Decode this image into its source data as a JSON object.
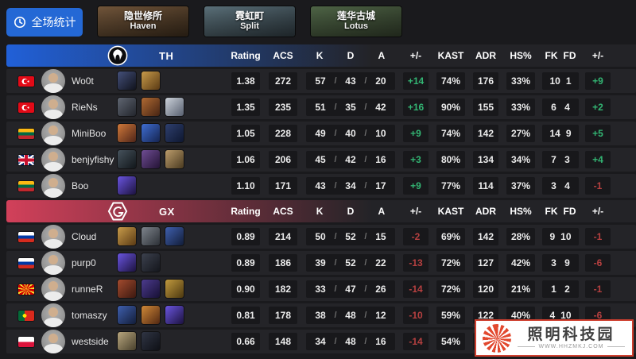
{
  "colors": {
    "positive": "#33b573",
    "negative": "#b64040",
    "button_blue": "#2468d5"
  },
  "top_bar": {
    "overall_button": {
      "label": "全场统计",
      "icon": "clock-icon"
    },
    "maps": [
      {
        "name_cn": "隐世修所",
        "name_en": "Haven",
        "c1": "#8a6847",
        "c2": "#40301f"
      },
      {
        "name_cn": "霓虹町",
        "name_en": "Split",
        "c1": "#6e8893",
        "c2": "#333f46"
      },
      {
        "name_cn": "莲华古城",
        "name_en": "Lotus",
        "c1": "#5f7a55",
        "c2": "#37432f"
      }
    ]
  },
  "columns": [
    "Rating",
    "ACS",
    "K",
    "D",
    "A",
    "+/-",
    "KAST",
    "ADR",
    "HS%",
    "FK",
    "FD",
    "+/-"
  ],
  "kda_separator": "/",
  "teams": [
    {
      "tag": "TH",
      "accent": "#2160d8",
      "players": [
        {
          "name": "Wo0t",
          "country": "tr",
          "rating": "1.38",
          "acs": "272",
          "k": "57",
          "d": "43",
          "a": "20",
          "diff": "+14",
          "kast": "74%",
          "adr": "176",
          "hs": "33%",
          "fk": "10",
          "fd": "1",
          "diff2": "+9",
          "agents": [
            [
              "#44507a",
              "#10121c"
            ],
            [
              "#c89b4a",
              "#5a3a14"
            ]
          ]
        },
        {
          "name": "RieNs",
          "country": "tr",
          "rating": "1.35",
          "acs": "235",
          "k": "51",
          "d": "35",
          "a": "42",
          "diff": "+16",
          "kast": "90%",
          "adr": "155",
          "hs": "33%",
          "fk": "6",
          "fd": "4",
          "diff2": "+2",
          "agents": [
            [
              "#606672",
              "#22252c"
            ],
            [
              "#b06a33",
              "#462413"
            ],
            [
              "#ccd2da",
              "#586070"
            ]
          ]
        },
        {
          "name": "MiniBoo",
          "country": "lt",
          "rating": "1.05",
          "acs": "228",
          "k": "49",
          "d": "40",
          "a": "10",
          "diff": "+9",
          "kast": "74%",
          "adr": "142",
          "hs": "27%",
          "fk": "14",
          "fd": "9",
          "diff2": "+5",
          "agents": [
            [
              "#d0793a",
              "#4e2418"
            ],
            [
              "#3f6ed2",
              "#152450"
            ],
            [
              "#2e3f6e",
              "#0e1730"
            ]
          ]
        },
        {
          "name": "benjyfishy",
          "country": "gb",
          "rating": "1.06",
          "acs": "206",
          "k": "45",
          "d": "42",
          "a": "16",
          "diff": "+3",
          "kast": "80%",
          "adr": "134",
          "hs": "34%",
          "fk": "7",
          "fd": "3",
          "diff2": "+4",
          "agents": [
            [
              "#46525c",
              "#11161a"
            ],
            [
              "#6f4d93",
              "#241336"
            ],
            [
              "#bb9c6b",
              "#4a3a20"
            ]
          ]
        },
        {
          "name": "Boo",
          "country": "lt",
          "rating": "1.10",
          "acs": "171",
          "k": "43",
          "d": "34",
          "a": "17",
          "diff": "+9",
          "kast": "77%",
          "adr": "114",
          "hs": "37%",
          "fk": "3",
          "fd": "4",
          "diff2": "-1",
          "agents": [
            [
              "#6a55e0",
              "#1c123e"
            ]
          ]
        }
      ]
    },
    {
      "tag": "GX",
      "accent": "#d2405a",
      "players": [
        {
          "name": "Cloud",
          "country": "ru",
          "rating": "0.89",
          "acs": "214",
          "k": "50",
          "d": "52",
          "a": "15",
          "diff": "-2",
          "kast": "69%",
          "adr": "142",
          "hs": "28%",
          "fk": "9",
          "fd": "10",
          "diff2": "-1",
          "agents": [
            [
              "#c89b4a",
              "#5a3a14"
            ],
            [
              "#7e848c",
              "#2c3036"
            ],
            [
              "#3f5fae",
              "#121d38"
            ]
          ]
        },
        {
          "name": "purp0",
          "country": "ru",
          "rating": "0.89",
          "acs": "186",
          "k": "39",
          "d": "52",
          "a": "22",
          "diff": "-13",
          "kast": "72%",
          "adr": "127",
          "hs": "42%",
          "fk": "3",
          "fd": "9",
          "diff2": "-6",
          "agents": [
            [
              "#6a55e0",
              "#1c123e"
            ],
            [
              "#3c414e",
              "#14161c"
            ]
          ]
        },
        {
          "name": "runneR",
          "country": "mk",
          "rating": "0.90",
          "acs": "182",
          "k": "33",
          "d": "47",
          "a": "26",
          "diff": "-14",
          "kast": "72%",
          "adr": "120",
          "hs": "21%",
          "fk": "1",
          "fd": "2",
          "diff2": "-1",
          "agents": [
            [
              "#a34b2e",
              "#3c1810"
            ],
            [
              "#4c3b8e",
              "#171034"
            ],
            [
              "#c19a3e",
              "#4c3810"
            ]
          ]
        },
        {
          "name": "tomaszy",
          "country": "pt",
          "rating": "0.81",
          "acs": "178",
          "k": "38",
          "d": "48",
          "a": "12",
          "diff": "-10",
          "kast": "59%",
          "adr": "122",
          "hs": "40%",
          "fk": "4",
          "fd": "10",
          "diff2": "-6",
          "agents": [
            [
              "#3f5fae",
              "#121d38"
            ],
            [
              "#d08938",
              "#522812"
            ],
            [
              "#6a55e0",
              "#1c123e"
            ]
          ]
        },
        {
          "name": "westside",
          "country": "pl",
          "rating": "0.66",
          "acs": "148",
          "k": "34",
          "d": "48",
          "a": "16",
          "diff": "-14",
          "kast": "54%",
          "adr": "",
          "hs": "",
          "fk": "",
          "fd": "",
          "diff2": "",
          "agents": [
            [
              "#b8a67e",
              "#48402c"
            ],
            [
              "#303544",
              "#0e1016"
            ]
          ]
        }
      ]
    }
  ],
  "watermark": {
    "title": "照明科技园",
    "subtitle": "WWW.HHZMKJ.COM"
  }
}
